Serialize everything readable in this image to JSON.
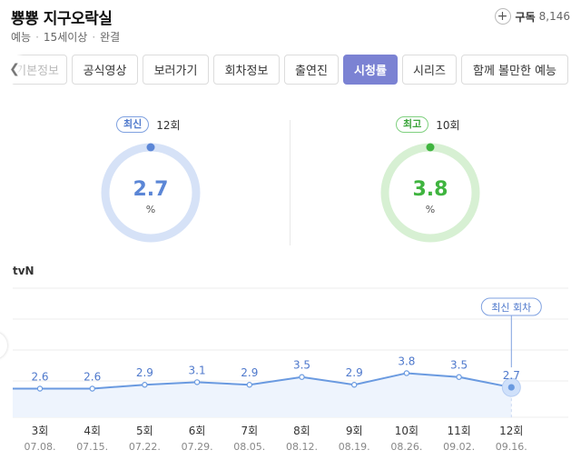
{
  "header": {
    "title": "뿅뿅 지구오락실",
    "genre": "예능",
    "age": "15세이상",
    "status": "완결",
    "subscribe_label": "구독",
    "subscribe_count": "8,146"
  },
  "tabs": [
    {
      "label": "기본정보",
      "active": false
    },
    {
      "label": "공식영상",
      "active": false
    },
    {
      "label": "보러가기",
      "active": false
    },
    {
      "label": "회차정보",
      "active": false
    },
    {
      "label": "출연진",
      "active": false
    },
    {
      "label": "시청률",
      "active": true
    },
    {
      "label": "시리즈",
      "active": false
    },
    {
      "label": "함께 볼만한 예능",
      "active": false
    }
  ],
  "stats": {
    "latest": {
      "badge": "최신",
      "episode": "12회",
      "value": "2.7",
      "unit": "%"
    },
    "highest": {
      "badge": "최고",
      "episode": "10회",
      "value": "3.8",
      "unit": "%"
    }
  },
  "channel": "tvN",
  "chart_data": {
    "type": "area",
    "categories": [
      "3회",
      "4회",
      "5회",
      "6회",
      "7회",
      "8회",
      "9회",
      "10회",
      "11회",
      "12회"
    ],
    "dates": [
      "07.08.",
      "07.15.",
      "07.22.",
      "07.29.",
      "08.05.",
      "08.12.",
      "08.19.",
      "08.26.",
      "09.02.",
      "09.16."
    ],
    "series": [
      {
        "values": [
          2.6,
          2.6,
          2.9,
          3.1,
          2.9,
          3.5,
          2.9,
          3.8,
          3.5,
          2.7
        ]
      }
    ],
    "annotation": "최신 회차",
    "line_color": "#6a9ae0",
    "fill_color": "#eef4fd"
  },
  "colors": {
    "accent": "#7b82d3",
    "blue_ring": "#d6e2f7",
    "blue_value": "#5b86d6",
    "green_ring": "#d7f0d3",
    "green_value": "#3fb43f"
  }
}
